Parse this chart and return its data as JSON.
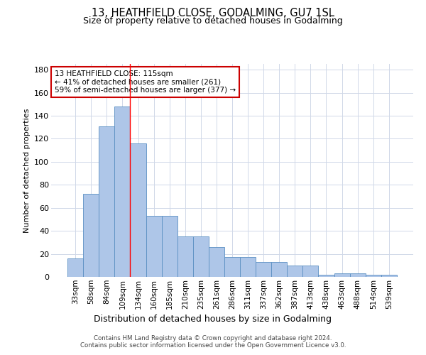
{
  "title": "13, HEATHFIELD CLOSE, GODALMING, GU7 1SL",
  "subtitle": "Size of property relative to detached houses in Godalming",
  "xlabel": "Distribution of detached houses by size in Godalming",
  "ylabel": "Number of detached properties",
  "categories": [
    "33sqm",
    "58sqm",
    "84sqm",
    "109sqm",
    "134sqm",
    "160sqm",
    "185sqm",
    "210sqm",
    "235sqm",
    "261sqm",
    "286sqm",
    "311sqm",
    "337sqm",
    "362sqm",
    "387sqm",
    "413sqm",
    "438sqm",
    "463sqm",
    "488sqm",
    "514sqm",
    "539sqm"
  ],
  "values": [
    16,
    72,
    131,
    148,
    116,
    53,
    53,
    35,
    35,
    26,
    17,
    17,
    13,
    13,
    10,
    10,
    2,
    3,
    3,
    2,
    2
  ],
  "bar_color": "#aec6e8",
  "bar_edge_color": "#5a8fc2",
  "red_line_x": 3.5,
  "annotation_line1": "13 HEATHFIELD CLOSE: 115sqm",
  "annotation_line2": "← 41% of detached houses are smaller (261)",
  "annotation_line3": "59% of semi-detached houses are larger (377) →",
  "annotation_box_color": "#ffffff",
  "annotation_box_edge_color": "#cc0000",
  "ylim": [
    0,
    185
  ],
  "yticks": [
    0,
    20,
    40,
    60,
    80,
    100,
    120,
    140,
    160,
    180
  ],
  "footer_line1": "Contains HM Land Registry data © Crown copyright and database right 2024.",
  "footer_line2": "Contains public sector information licensed under the Open Government Licence v3.0.",
  "background_color": "#ffffff",
  "grid_color": "#d0d8e8"
}
